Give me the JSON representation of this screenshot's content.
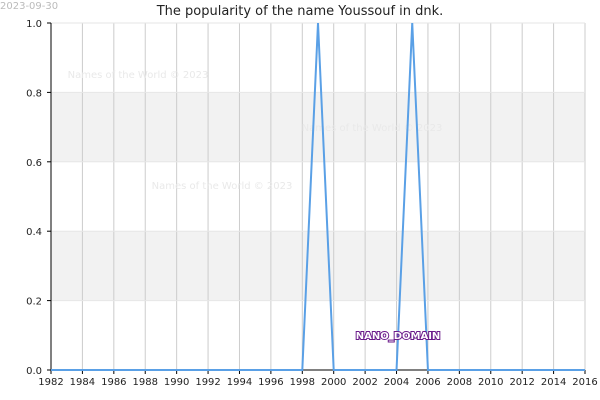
{
  "header": {
    "date": "2023-09-30",
    "title": "The popularity of the name Youssouf in dnk."
  },
  "watermarks": [
    "Names of the World © 2023",
    "Names of the World © 2023",
    "Names of the World © 2023"
  ],
  "badge": "NANO_DOMAIN",
  "colors": {
    "line": "#5aa0e6",
    "band": "#f2f2f2",
    "grid": "#cccccc"
  },
  "chart_data": {
    "type": "line",
    "title": "The popularity of the name Youssouf in dnk.",
    "xlabel": "",
    "ylabel": "",
    "xlim": [
      1982,
      2016
    ],
    "ylim": [
      0,
      1
    ],
    "x_ticks": [
      1982,
      1984,
      1986,
      1988,
      1990,
      1992,
      1994,
      1996,
      1998,
      2000,
      2002,
      2004,
      2006,
      2008,
      2010,
      2012,
      2014,
      2016
    ],
    "y_ticks": [
      "0.0",
      "0.2",
      "0.4",
      "0.6",
      "0.8",
      "1.0"
    ],
    "grid": true,
    "series": [
      {
        "x": [
          1982,
          1998,
          1999,
          2000,
          2004,
          2005,
          2006,
          2016
        ],
        "values": [
          0,
          0,
          1,
          0,
          0,
          1,
          0,
          0
        ]
      }
    ]
  }
}
